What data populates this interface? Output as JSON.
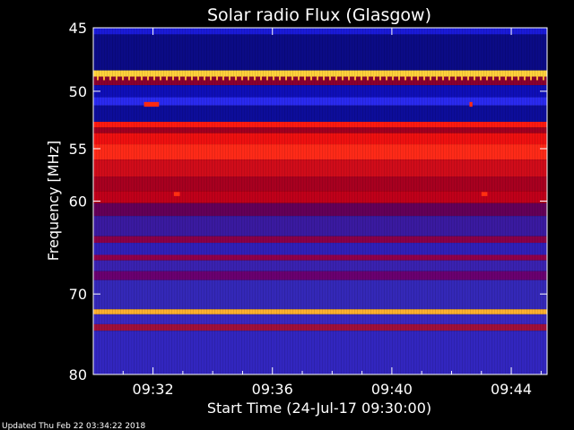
{
  "chart_data": {
    "type": "heatmap",
    "title": "Solar radio Flux (Glasgow)",
    "xlabel": "Start Time (24-Jul-17 09:30:00)",
    "ylabel": "Frequency [MHz]",
    "x_range_minutes": [
      0,
      15.2
    ],
    "y_range_mhz": [
      45,
      80
    ],
    "y_scale": "log",
    "y_ticks": [
      {
        "value": 45,
        "label": "45"
      },
      {
        "value": 50,
        "label": "50"
      },
      {
        "value": 55,
        "label": "55"
      },
      {
        "value": 60,
        "label": "60"
      },
      {
        "value": 70,
        "label": "70"
      },
      {
        "value": 80,
        "label": "80"
      }
    ],
    "x_ticks": [
      {
        "value": 2,
        "label": "09:32"
      },
      {
        "value": 6,
        "label": "09:36"
      },
      {
        "value": 10,
        "label": "09:40"
      },
      {
        "value": 14,
        "label": "09:44"
      }
    ],
    "bands": [
      {
        "f0": 45.0,
        "f1": 45.5,
        "color": "#1a1ad8"
      },
      {
        "f0": 45.5,
        "f1": 48.3,
        "color": "#0b0b86"
      },
      {
        "f0": 48.3,
        "f1": 48.8,
        "color": "#ffd23c"
      },
      {
        "f0": 48.8,
        "f1": 49.5,
        "color": "#8a0030"
      },
      {
        "f0": 49.5,
        "f1": 50.5,
        "color": "#0f0fb8"
      },
      {
        "f0": 50.5,
        "f1": 51.2,
        "color": "#2a2af0"
      },
      {
        "f0": 51.2,
        "f1": 52.6,
        "color": "#0d0d9a"
      },
      {
        "f0": 52.6,
        "f1": 53.1,
        "color": "#ff1a10"
      },
      {
        "f0": 53.1,
        "f1": 53.6,
        "color": "#a00020"
      },
      {
        "f0": 53.6,
        "f1": 54.6,
        "color": "#ee1010"
      },
      {
        "f0": 54.6,
        "f1": 56.0,
        "color": "#ff2a18"
      },
      {
        "f0": 56.0,
        "f1": 57.6,
        "color": "#d00c1a"
      },
      {
        "f0": 57.6,
        "f1": 59.0,
        "color": "#a80020"
      },
      {
        "f0": 59.0,
        "f1": 60.2,
        "color": "#c0001a"
      },
      {
        "f0": 60.2,
        "f1": 61.5,
        "color": "#640058"
      },
      {
        "f0": 61.5,
        "f1": 63.6,
        "color": "#3a1aa0"
      },
      {
        "f0": 63.6,
        "f1": 64.3,
        "color": "#8a0048"
      },
      {
        "f0": 64.3,
        "f1": 65.6,
        "color": "#3020b8"
      },
      {
        "f0": 65.6,
        "f1": 66.2,
        "color": "#90004a"
      },
      {
        "f0": 66.2,
        "f1": 67.4,
        "color": "#3a22b0"
      },
      {
        "f0": 67.4,
        "f1": 68.4,
        "color": "#6a0070"
      },
      {
        "f0": 68.4,
        "f1": 71.8,
        "color": "#3428b8"
      },
      {
        "f0": 71.8,
        "f1": 72.4,
        "color": "#ffb030"
      },
      {
        "f0": 72.4,
        "f1": 73.6,
        "color": "#3a28c0"
      },
      {
        "f0": 73.6,
        "f1": 74.4,
        "color": "#a0103a"
      },
      {
        "f0": 74.4,
        "f1": 80.0,
        "color": "#3226bf"
      }
    ],
    "spots": [
      {
        "t0": 1.7,
        "t1": 2.2,
        "f0": 50.9,
        "f1": 51.3,
        "color": "#ff2a10"
      },
      {
        "t0": 12.6,
        "t1": 12.7,
        "f0": 50.9,
        "f1": 51.3,
        "color": "#ff2a10"
      },
      {
        "t0": 2.7,
        "t1": 2.9,
        "f0": 59.1,
        "f1": 59.5,
        "color": "#ff3010"
      },
      {
        "t0": 13.0,
        "t1": 13.2,
        "f0": 59.1,
        "f1": 59.5,
        "color": "#ff3010"
      }
    ],
    "colorscale": [
      "#000080",
      "#2a2af0",
      "#8a0048",
      "#ff2a10",
      "#ffd23c"
    ]
  },
  "footer": {
    "updated": "Updated Thu Feb 22 03:34:22 2018"
  }
}
